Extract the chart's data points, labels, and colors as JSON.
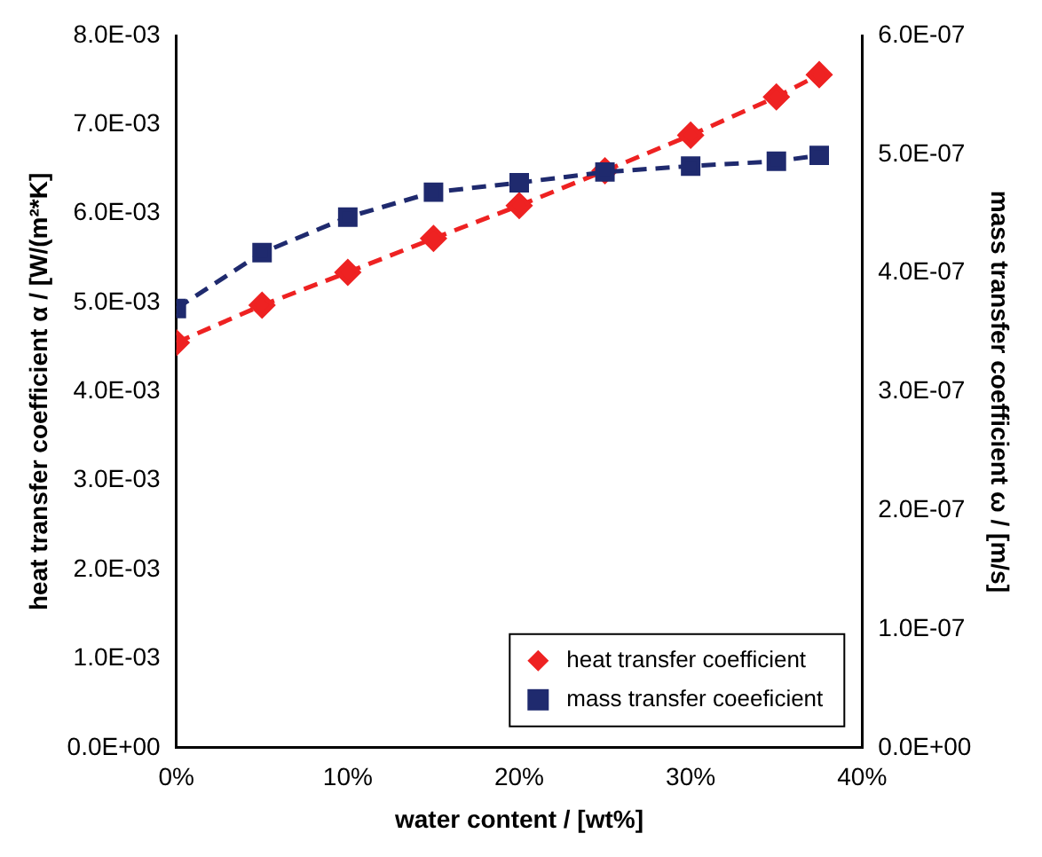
{
  "chart_data": {
    "type": "line",
    "xlabel": "water content / [wt%]",
    "ylabel": "heat transfer coefficient α / [W/(m²*K]",
    "y2label": "mass transfer coefficient ω / [m/s]",
    "x": [
      0,
      5,
      10,
      15,
      20,
      25,
      30,
      35,
      37.5
    ],
    "series": [
      {
        "name": "heat transfer coefficient",
        "color": "#ee2222",
        "marker": "diamond",
        "line_style": "dashed",
        "values": [
          0.00455,
          0.00497,
          0.00534,
          0.00572,
          0.00609,
          0.00648,
          0.00688,
          0.00731,
          0.00756
        ]
      },
      {
        "name": "mass transfer coeeficient",
        "color": "#1f2a6e",
        "marker": "square",
        "line_style": "dashed",
        "axis": "y2",
        "values": [
          3.7e-07,
          4.17e-07,
          4.47e-07,
          4.68e-07,
          4.76e-07,
          4.85e-07,
          4.9e-07,
          4.94e-07,
          4.99e-07
        ]
      }
    ],
    "xlim": [
      0,
      40
    ],
    "xticks": [
      {
        "value": 0,
        "label": "0%"
      },
      {
        "value": 10,
        "label": "10%"
      },
      {
        "value": 20,
        "label": "20%"
      },
      {
        "value": 30,
        "label": "30%"
      },
      {
        "value": 40,
        "label": "40%"
      }
    ],
    "ylim": [
      0,
      0.008
    ],
    "yticks": [
      {
        "value": 0,
        "label": "0.0E+00"
      },
      {
        "value": 0.001,
        "label": "1.0E-03"
      },
      {
        "value": 0.002,
        "label": "2.0E-03"
      },
      {
        "value": 0.003,
        "label": "3.0E-03"
      },
      {
        "value": 0.004,
        "label": "4.0E-03"
      },
      {
        "value": 0.005,
        "label": "5.0E-03"
      },
      {
        "value": 0.006,
        "label": "6.0E-03"
      },
      {
        "value": 0.007,
        "label": "7.0E-03"
      },
      {
        "value": 0.008,
        "label": "8.0E-03"
      }
    ],
    "y2lim": [
      0,
      6e-07
    ],
    "y2ticks": [
      {
        "value": 0,
        "label": "0.0E+00"
      },
      {
        "value": 1e-07,
        "label": "1.0E-07"
      },
      {
        "value": 2e-07,
        "label": "2.0E-07"
      },
      {
        "value": 3e-07,
        "label": "3.0E-07"
      },
      {
        "value": 4e-07,
        "label": "4.0E-07"
      },
      {
        "value": 5e-07,
        "label": "5.0E-07"
      },
      {
        "value": 6e-07,
        "label": "6.0E-07"
      }
    ],
    "legend": "bottom right"
  }
}
